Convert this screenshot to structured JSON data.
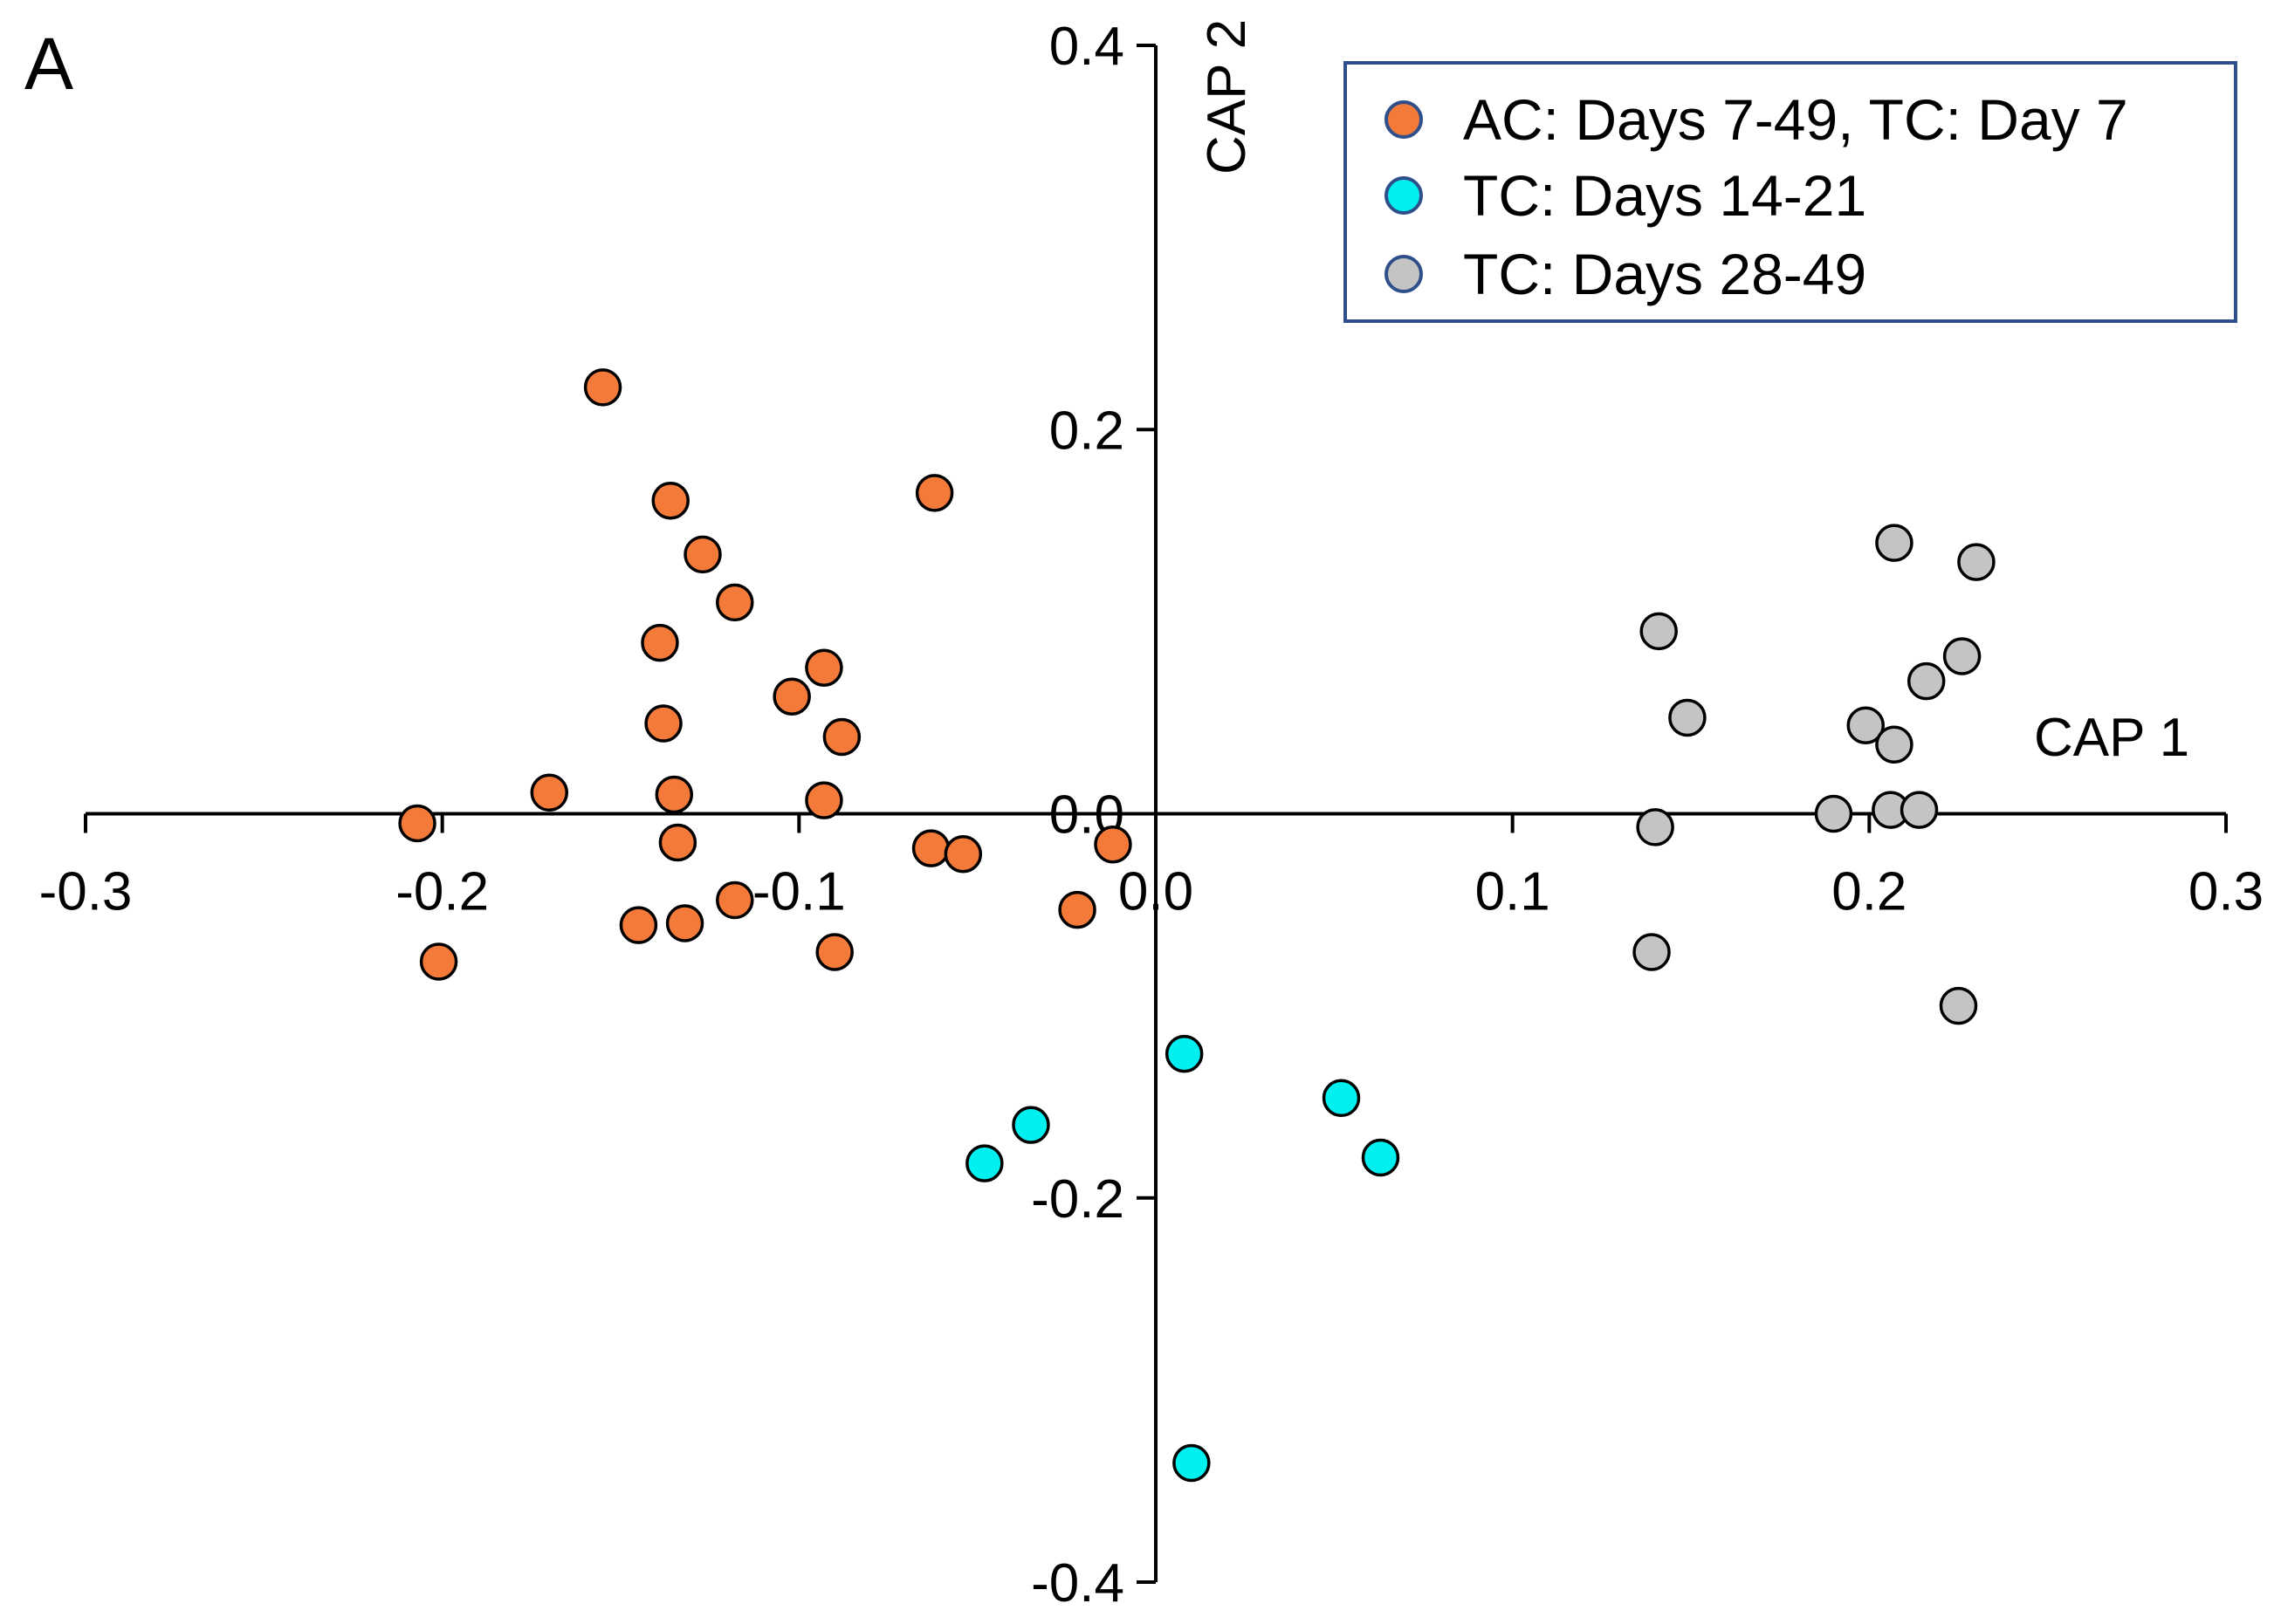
{
  "panel_label": "A",
  "colors": {
    "orange": "#f47a3a",
    "cyan": "#00f0f0",
    "gray": "#c4c4c4",
    "legend_border": "#2f4f8a",
    "marker_edge": "#000000",
    "axis": "#000000"
  },
  "chart_data": {
    "type": "scatter",
    "xlabel": "CAP 1",
    "ylabel": "CAP 2",
    "xlim": [
      -0.3,
      0.3
    ],
    "ylim": [
      -0.4,
      0.4
    ],
    "x_ticks": [
      -0.3,
      -0.2,
      -0.1,
      0.0,
      0.1,
      0.2,
      0.3
    ],
    "y_ticks": [
      -0.4,
      -0.2,
      0.0,
      0.2,
      0.4
    ],
    "x_tick_labels": [
      "-0.3",
      "-0.2",
      "-0.1",
      "0.0",
      "0.1",
      "0.2",
      "0.3"
    ],
    "y_tick_labels": [
      "-0.4",
      "-0.2",
      "0.0",
      "0.2",
      "0.4"
    ],
    "legend_position": "top-right",
    "series": [
      {
        "name": "AC: Days 7-49, TC: Day 7",
        "color": "#f47a3a",
        "points": [
          [
            -0.155,
            0.222
          ],
          [
            -0.136,
            0.163
          ],
          [
            -0.127,
            0.135
          ],
          [
            -0.118,
            0.11
          ],
          [
            -0.139,
            0.089
          ],
          [
            -0.062,
            0.167
          ],
          [
            -0.093,
            0.076
          ],
          [
            -0.102,
            0.061
          ],
          [
            -0.138,
            0.047
          ],
          [
            -0.088,
            0.04
          ],
          [
            -0.17,
            0.011
          ],
          [
            -0.135,
            0.01
          ],
          [
            -0.093,
            0.007
          ],
          [
            -0.207,
            -0.005
          ],
          [
            -0.134,
            -0.015
          ],
          [
            -0.063,
            -0.018
          ],
          [
            -0.054,
            -0.021
          ],
          [
            -0.012,
            -0.016
          ],
          [
            -0.118,
            -0.045
          ],
          [
            -0.145,
            -0.058
          ],
          [
            -0.132,
            -0.057
          ],
          [
            -0.022,
            -0.05
          ],
          [
            -0.09,
            -0.072
          ],
          [
            -0.201,
            -0.077
          ]
        ]
      },
      {
        "name": "TC: Days 14-21",
        "color": "#00f0f0",
        "points": [
          [
            0.008,
            -0.125
          ],
          [
            -0.035,
            -0.162
          ],
          [
            -0.048,
            -0.182
          ],
          [
            0.052,
            -0.148
          ],
          [
            0.063,
            -0.179
          ],
          [
            0.01,
            -0.338
          ]
        ]
      },
      {
        "name": "TC: Days 28-49",
        "color": "#c4c4c4",
        "points": [
          [
            0.207,
            0.141
          ],
          [
            0.23,
            0.131
          ],
          [
            0.141,
            0.095
          ],
          [
            0.226,
            0.082
          ],
          [
            0.216,
            0.069
          ],
          [
            0.149,
            0.05
          ],
          [
            0.199,
            0.046
          ],
          [
            0.207,
            0.036
          ],
          [
            0.19,
            0.0
          ],
          [
            0.206,
            0.002
          ],
          [
            0.214,
            0.002
          ],
          [
            0.14,
            -0.007
          ],
          [
            0.139,
            -0.072
          ],
          [
            0.225,
            -0.1
          ]
        ]
      }
    ]
  }
}
